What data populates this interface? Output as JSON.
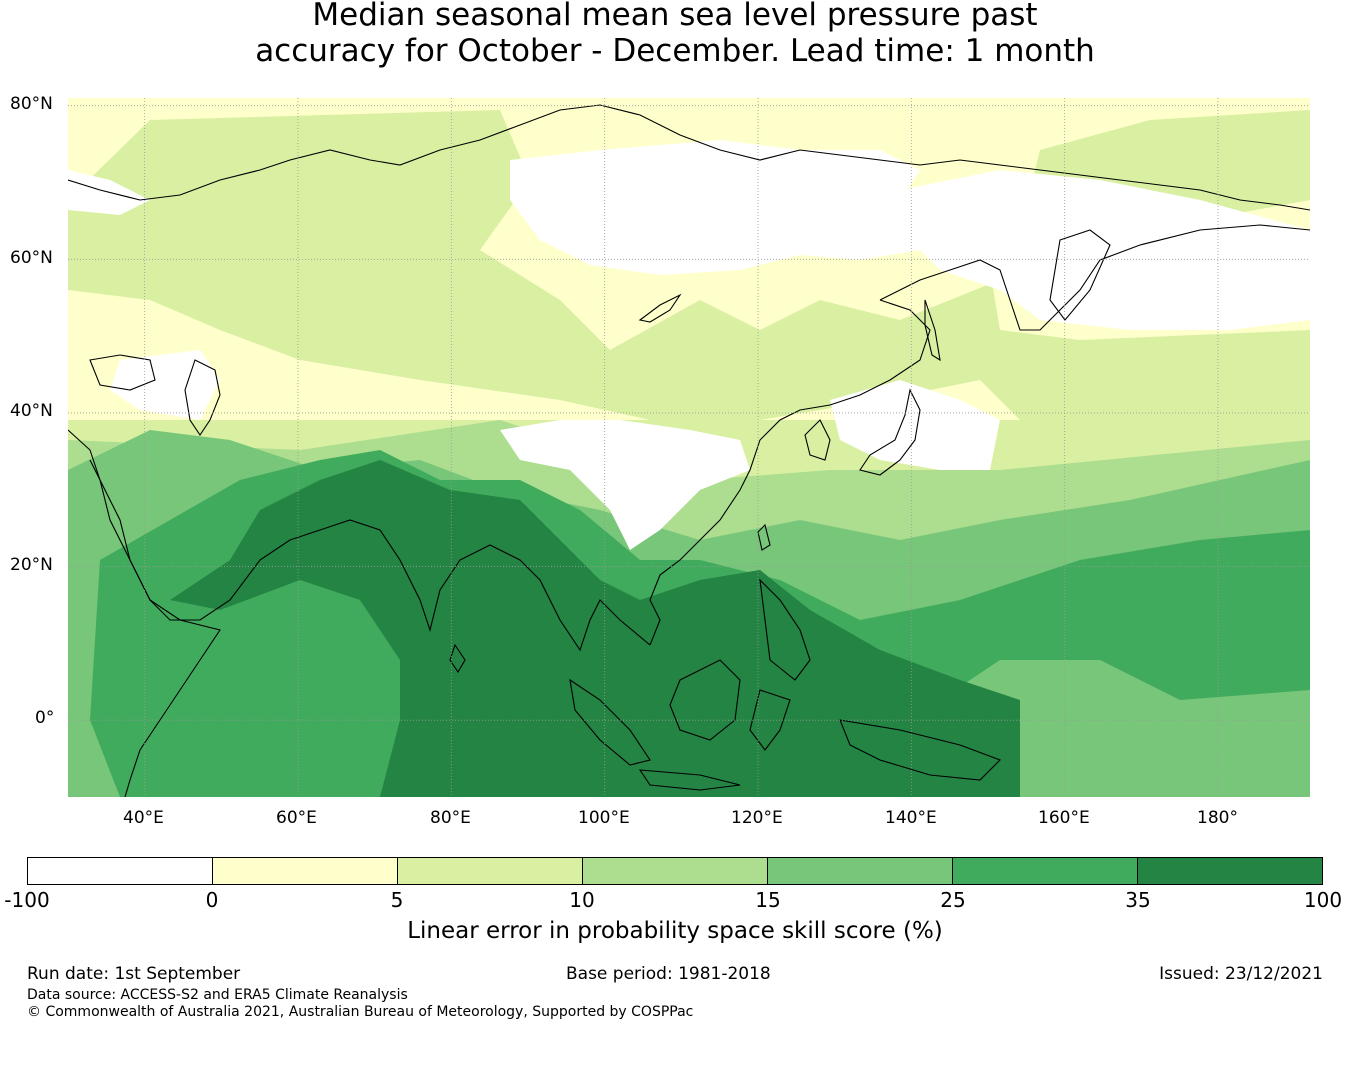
{
  "title_line1": "Median seasonal mean sea level pressure past",
  "title_line2": "accuracy for October - December. Lead time: 1 month",
  "lat_labels": [
    "80°N",
    "60°N",
    "40°N",
    "20°N",
    "0°"
  ],
  "lon_labels": [
    "40°E",
    "60°E",
    "80°E",
    "100°E",
    "120°E",
    "140°E",
    "160°E",
    "180°"
  ],
  "colorbar": {
    "label": "Linear error in probability space skill score (%)",
    "ticks": [
      "-100",
      "0",
      "5",
      "10",
      "15",
      "25",
      "35",
      "100"
    ],
    "colors": [
      "#ffffff",
      "#ffffcc",
      "#d9f0a3",
      "#addd8e",
      "#78c679",
      "#41ab5d",
      "#238443"
    ]
  },
  "footer": {
    "run_date": "Run date: 1st September",
    "base_period": "Base period: 1981-2018",
    "issued": "Issued: 23/12/2021",
    "data_source": "Data source: ACCESS-S2 and ERA5 Climate Reanalysis",
    "copyright": "© Commonwealth of Australia 2021, Australian Bureau of Meteorology, Supported by COSPPac"
  },
  "map_data": {
    "extent": {
      "lon_min": 30,
      "lon_max": 192,
      "lat_min": -10,
      "lat_max": 81
    },
    "gridlines": {
      "lon": [
        40,
        60,
        80,
        100,
        120,
        140,
        160,
        180
      ],
      "lat": [
        0,
        20,
        40,
        60,
        80
      ]
    }
  }
}
